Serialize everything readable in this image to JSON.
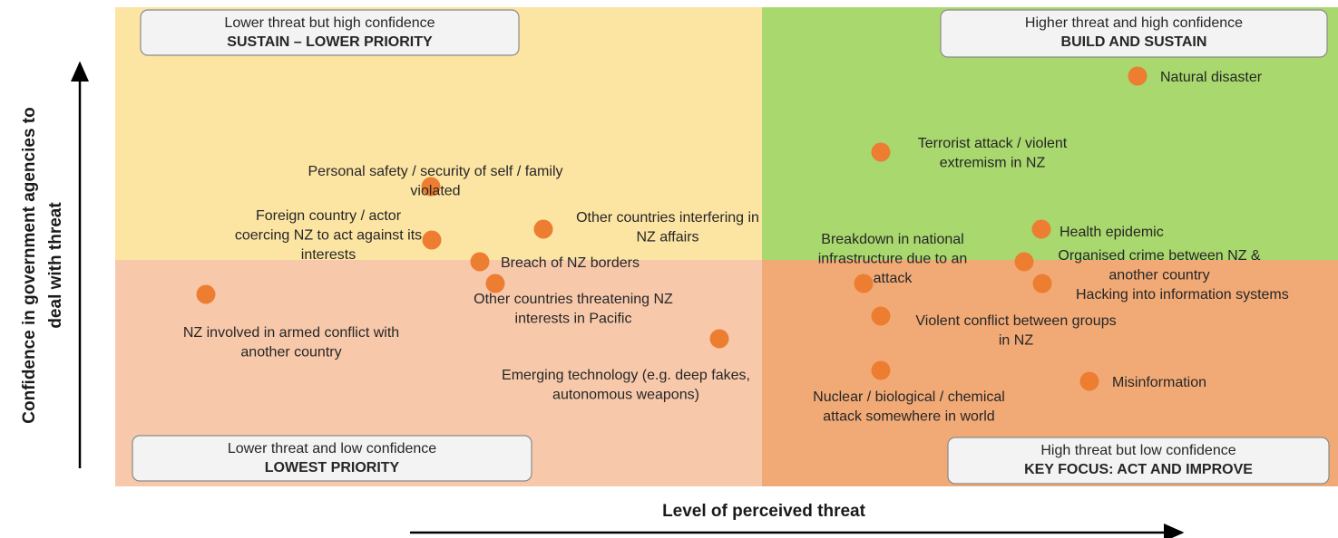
{
  "axes": {
    "y_label": [
      "Confidence in government agencies to",
      "deal with threat"
    ],
    "x_label": "Level of perceived threat"
  },
  "quadrants": [
    {
      "line1": "Lower threat but high confidence",
      "line2": "SUSTAIN – LOWER PRIORITY"
    },
    {
      "line1": "Higher threat and high confidence",
      "line2": "BUILD AND SUSTAIN"
    },
    {
      "line1": "Lower threat and low confidence",
      "line2": "LOWEST PRIORITY"
    },
    {
      "line1": "High threat but low confidence",
      "line2": "KEY FOCUS: ACT AND IMPROVE"
    }
  ],
  "nodes": [
    {
      "label": [
        "Natural disaster"
      ]
    },
    {
      "label": [
        "Terrorist attack / violent",
        "extremism in NZ"
      ]
    },
    {
      "label": [
        "Personal safety / security of self / family",
        "violated"
      ]
    },
    {
      "label": [
        "Foreign country / actor",
        "coercing NZ to act against its",
        "interests"
      ]
    },
    {
      "label": [
        "Other countries interfering in",
        "NZ affairs"
      ]
    },
    {
      "label": [
        "Breach of NZ borders"
      ]
    },
    {
      "label": [
        "Other countries threatening NZ",
        "interests in Pacific"
      ]
    },
    {
      "label": [
        "NZ involved in armed conflict with",
        "another country"
      ]
    },
    {
      "label": [
        "Emerging technology (e.g. deep fakes,",
        "autonomous weapons)"
      ]
    },
    {
      "label": [
        "Breakdown in national",
        "infrastructure due to an",
        "attack"
      ]
    },
    {
      "label": [
        "Health epidemic"
      ]
    },
    {
      "label": [
        "Organised crime between NZ &",
        "another country"
      ]
    },
    {
      "label": [
        "Hacking into information systems"
      ]
    },
    {
      "label": [
        "Violent conflict between groups",
        "in NZ"
      ]
    },
    {
      "label": [
        "Nuclear / biological / chemical",
        "attack somewhere in world"
      ]
    },
    {
      "label": [
        "Misinformation"
      ]
    }
  ]
}
